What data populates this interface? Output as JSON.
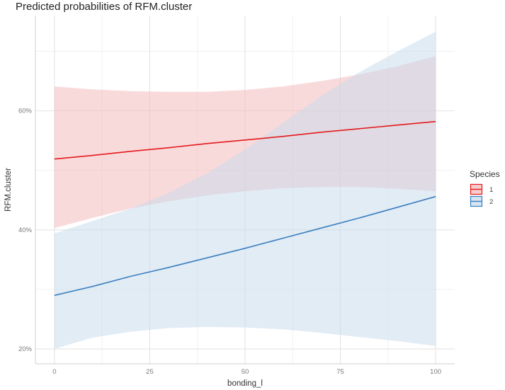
{
  "chart_data": {
    "type": "line",
    "title": "Predicted probabilities of RFM.cluster",
    "xlabel": "bonding_l",
    "ylabel": "RFM.cluster",
    "xlim": [
      -5,
      105
    ],
    "ylim": [
      17.5,
      76
    ],
    "x_ticks": [
      0,
      25,
      50,
      75,
      100
    ],
    "x_tick_labels": [
      "0",
      "25",
      "50",
      "75",
      "100"
    ],
    "y_ticks": [
      20,
      40,
      60
    ],
    "y_tick_labels": [
      "20%",
      "40%",
      "60%"
    ],
    "y_minor_ticks": [
      30,
      50,
      70
    ],
    "x_minor_ticks": [
      12.5,
      37.5,
      62.5,
      87.5
    ],
    "grid": true,
    "legend": {
      "title": "Species",
      "placement": "right"
    },
    "x": [
      0,
      10,
      20,
      30,
      40,
      50,
      60,
      70,
      80,
      90,
      100
    ],
    "series": [
      {
        "name": "1",
        "color": "#E41A1C",
        "fill": "#F4B6B7",
        "values": [
          51.9,
          52.5,
          53.2,
          53.8,
          54.5,
          55.1,
          55.7,
          56.4,
          57.0,
          57.6,
          58.2
        ],
        "lower": [
          40.3,
          42.0,
          43.6,
          44.8,
          45.8,
          46.5,
          47.0,
          47.2,
          47.2,
          46.9,
          46.5
        ],
        "upper": [
          64.1,
          63.6,
          63.3,
          63.2,
          63.2,
          63.5,
          64.1,
          65.0,
          66.1,
          67.5,
          69.2
        ]
      },
      {
        "name": "2",
        "color": "#3A7FBF",
        "fill": "#C6D9EC",
        "values": [
          29.0,
          30.5,
          32.2,
          33.7,
          35.3,
          36.9,
          38.6,
          40.3,
          42.0,
          43.8,
          45.6
        ],
        "lower": [
          20.0,
          21.9,
          22.9,
          23.5,
          23.7,
          23.6,
          23.3,
          22.7,
          22.0,
          21.3,
          20.5
        ],
        "upper": [
          39.4,
          41.5,
          43.6,
          46.2,
          49.5,
          53.5,
          58.0,
          62.5,
          66.5,
          70.0,
          73.3
        ]
      }
    ]
  }
}
